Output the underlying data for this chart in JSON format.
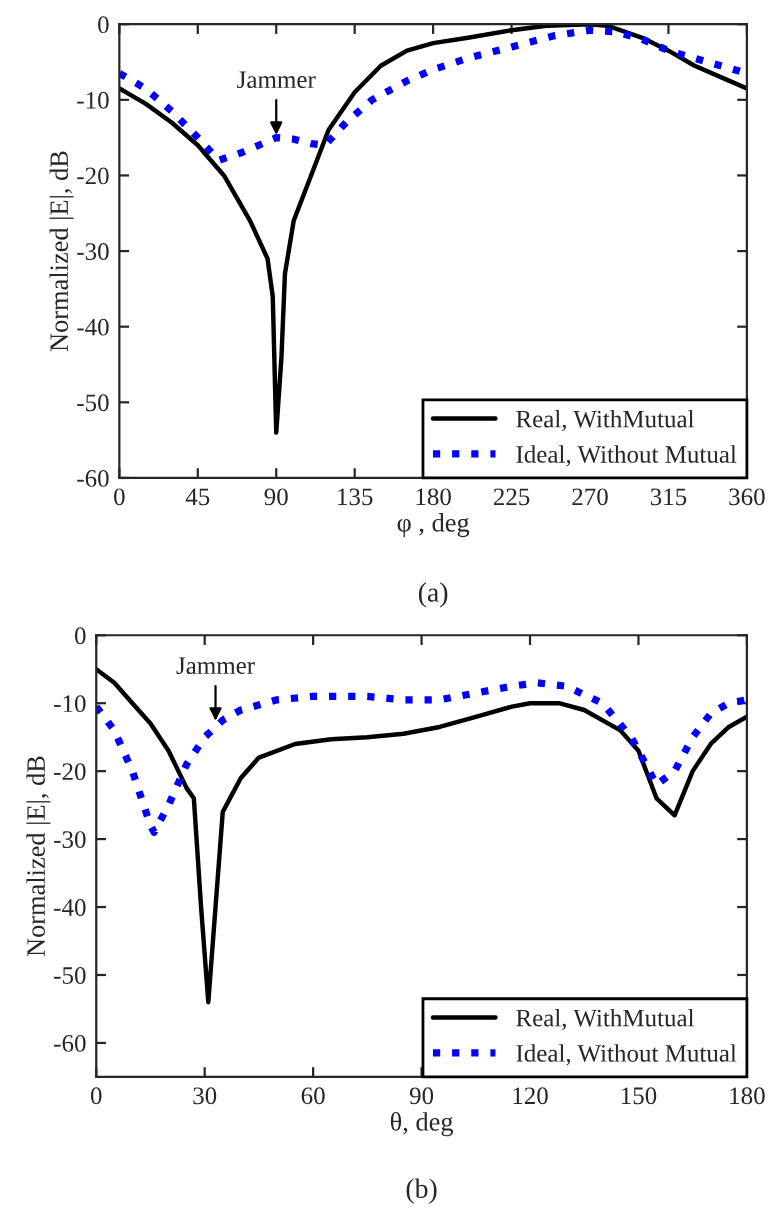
{
  "chart_data": [
    {
      "type": "line",
      "xlabel": "φ , deg",
      "ylabel": "Normalized |E|, dB",
      "xlim": [
        0,
        360
      ],
      "ylim": [
        -60,
        0
      ],
      "xticks": [
        0,
        45,
        90,
        135,
        180,
        225,
        270,
        315,
        360
      ],
      "yticks": [
        -60,
        -50,
        -40,
        -30,
        -20,
        -10,
        0
      ],
      "grid": false,
      "legend": "bottom right",
      "annotations": [
        {
          "text": "Jammer",
          "x": 90,
          "y": -15
        },
        "(a)"
      ],
      "series": [
        {
          "name": "Real, WithMutual",
          "color": "#000000",
          "line_style": "solid",
          "x": [
            0,
            15,
            30,
            45,
            60,
            75,
            85,
            88,
            90,
            93,
            95,
            100,
            110,
            120,
            135,
            150,
            165,
            180,
            200,
            225,
            245,
            270,
            280,
            300,
            315,
            330,
            345,
            360
          ],
          "values": [
            -8.5,
            -10.5,
            -13,
            -16,
            -20,
            -26,
            -31,
            -36,
            -54,
            -44,
            -33,
            -26,
            -20,
            -14,
            -9,
            -5.5,
            -3.5,
            -2.5,
            -1.8,
            -0.8,
            -0.2,
            0,
            -0.2,
            -1.8,
            -3.5,
            -5.5,
            -7,
            -8.5
          ]
        },
        {
          "name": "Ideal, Without Mutual",
          "color": "#0000ff",
          "line_style": "dotted",
          "x": [
            0,
            15,
            30,
            45,
            57,
            70,
            80,
            90,
            100,
            110,
            118,
            130,
            145,
            165,
            180,
            200,
            225,
            250,
            270,
            285,
            300,
            315,
            330,
            345,
            360
          ],
          "values": [
            -6.5,
            -8.5,
            -11.5,
            -15,
            -18,
            -17,
            -16,
            -15,
            -15.2,
            -15.8,
            -16,
            -13,
            -10,
            -7.5,
            -6,
            -4.5,
            -3,
            -1.5,
            -0.8,
            -1,
            -2,
            -3.5,
            -4.5,
            -5.5,
            -6.5
          ]
        }
      ]
    },
    {
      "type": "line",
      "xlabel": "θ, deg",
      "ylabel": "Normalized |E|, dB",
      "xlim": [
        0,
        180
      ],
      "ylim": [
        -65,
        0
      ],
      "xticks": [
        0,
        30,
        60,
        90,
        120,
        150,
        180
      ],
      "yticks": [
        -60,
        -50,
        -40,
        -30,
        -20,
        -10,
        0
      ],
      "grid": false,
      "legend": "bottom right",
      "annotations": [
        {
          "text": "Jammer",
          "x": 33,
          "y": -13
        },
        "(b)"
      ],
      "series": [
        {
          "name": "Real, WithMutual",
          "color": "#000000",
          "line_style": "solid",
          "x": [
            0,
            5,
            10,
            15,
            20,
            25,
            27,
            29,
            31,
            33,
            35,
            40,
            45,
            55,
            65,
            75,
            85,
            95,
            105,
            115,
            120,
            128,
            135,
            145,
            150,
            155,
            160,
            165,
            170,
            175,
            180
          ],
          "values": [
            -5,
            -7,
            -10,
            -13,
            -17,
            -22.5,
            -24,
            -40,
            -54,
            -40,
            -26,
            -21,
            -18,
            -16,
            -15.3,
            -15,
            -14.5,
            -13.5,
            -12,
            -10.5,
            -10,
            -10,
            -11,
            -14,
            -17,
            -24,
            -26.5,
            -20,
            -16,
            -13.5,
            -12
          ]
        },
        {
          "name": "Ideal, Without Mutual",
          "color": "#0000ff",
          "line_style": "dotted",
          "x": [
            0,
            5,
            10,
            15,
            16,
            20,
            25,
            30,
            35,
            40,
            50,
            60,
            75,
            85,
            95,
            105,
            115,
            122,
            130,
            140,
            148,
            155,
            160,
            165,
            170,
            175,
            180
          ],
          "values": [
            -10.5,
            -14,
            -20,
            -28,
            -29,
            -25,
            -19,
            -15,
            -12.5,
            -11,
            -9.5,
            -9,
            -9,
            -9.5,
            -9.5,
            -8.5,
            -7.5,
            -7,
            -7.5,
            -10,
            -15,
            -22,
            -20,
            -15,
            -11.5,
            -10,
            -9.5
          ]
        }
      ]
    }
  ]
}
